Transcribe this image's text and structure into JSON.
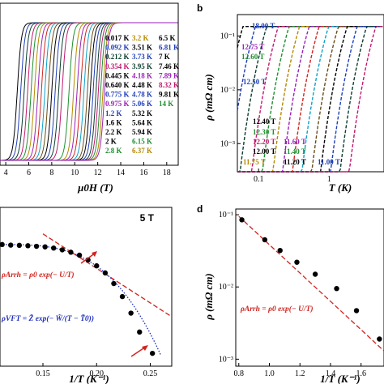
{
  "panels": {
    "a": {
      "xlabel": "μ0H (T)",
      "x_ticks": [
        "4",
        "6",
        "8",
        "10",
        "12",
        "14",
        "16",
        "18"
      ],
      "legend": [
        {
          "label": "0.017 K",
          "color": "#000000"
        },
        {
          "label": "0.092 K",
          "color": "#1f3fb8"
        },
        {
          "label": "0.212 K",
          "color": "#0b3d2e"
        },
        {
          "label": "0.354 K",
          "color": "#c0196f"
        },
        {
          "label": "0.445 K",
          "color": "#000000"
        },
        {
          "label": "0.640 K",
          "color": "#000000"
        },
        {
          "label": "0.775 K",
          "color": "#1f3fb8"
        },
        {
          "label": "0.975 K",
          "color": "#9b1fb8"
        },
        {
          "label": "1.2 K",
          "color": "#1f3fb8"
        },
        {
          "label": "1.6 K",
          "color": "#000000"
        },
        {
          "label": "2.2 K",
          "color": "#000000"
        },
        {
          "label": "2 K",
          "color": "#000000"
        },
        {
          "label": "2.8 K",
          "color": "#1f8f2f"
        },
        {
          "label": "3.2 K",
          "color": "#b58900"
        },
        {
          "label": "3.51 K",
          "color": "#000000"
        },
        {
          "label": "3.73 K",
          "color": "#1f3fb8"
        },
        {
          "label": "3.95 K",
          "color": "#0b3d2e"
        },
        {
          "label": "4.18 K",
          "color": "#9b1fb8"
        },
        {
          "label": "4.48 K",
          "color": "#000000"
        },
        {
          "label": "4.78 K",
          "color": "#1f3fb8"
        },
        {
          "label": "5.06 K",
          "color": "#1f3fb8"
        },
        {
          "label": "5.32 K",
          "color": "#000000"
        },
        {
          "label": "5.64 K",
          "color": "#000000"
        },
        {
          "label": "5.94 K",
          "color": "#000000"
        },
        {
          "label": "6.15 K",
          "color": "#1f8f2f"
        },
        {
          "label": "6.37 K",
          "color": "#b58900"
        },
        {
          "label": "6.5 K",
          "color": "#000000"
        },
        {
          "label": "6.81 K",
          "color": "#1f3fb8"
        },
        {
          "label": "7 K",
          "color": "#000000"
        },
        {
          "label": "7.46 K",
          "color": "#000000"
        },
        {
          "label": "7.89 K",
          "color": "#9b1fb8"
        },
        {
          "label": "8.32 K",
          "color": "#c0196f"
        },
        {
          "label": "9.81 K",
          "color": "#000000"
        },
        {
          "label": "14 K",
          "color": "#1f8f2f"
        }
      ]
    },
    "b": {
      "letter": "b",
      "xlabel": "T (K)",
      "ylabel": "ρ (mΩ cm)",
      "x_ticks": [
        "0.1",
        "1"
      ],
      "y_ticks": [
        "10⁻¹",
        "10⁻²",
        "10⁻³"
      ],
      "field_labels": [
        {
          "label": "18.00 T",
          "color": "#1f3fb8"
        },
        {
          "label": "12.75 T",
          "color": "#9b1fb8"
        },
        {
          "label": "12.60 T",
          "color": "#1f8f2f"
        },
        {
          "label": "12.50 T",
          "color": "#1f3fb8"
        },
        {
          "label": "12.40 T",
          "color": "#000000"
        },
        {
          "label": "12.30 T",
          "color": "#1f8f2f"
        },
        {
          "label": "12.20 T",
          "color": "#c0196f"
        },
        {
          "label": "12.00 T",
          "color": "#000000"
        },
        {
          "label": "11.75 T",
          "color": "#b58900"
        },
        {
          "label": "11.60 T",
          "color": "#9b1fb8"
        },
        {
          "label": "11.40 T",
          "color": "#1f8f2f"
        },
        {
          "label": "11.20 T",
          "color": "#000000"
        },
        {
          "label": "11.00 T",
          "color": "#1f3fb8"
        }
      ]
    },
    "c": {
      "field": "5 T",
      "xlabel": "1/T (K⁻¹)",
      "x_ticks": [
        "0.15",
        "0.20",
        "0.25"
      ],
      "eq_arrh": "ρArrh = ρ0 exp(− U/T)",
      "eq_vft": "ρVFT = Z̃ exp(− W̃/(T − T̃0))"
    },
    "d": {
      "letter": "d",
      "xlabel": "1/T (K⁻¹)",
      "ylabel": "ρ (mΩ cm)",
      "x_ticks": [
        "0.8",
        "1.0",
        "1.2",
        "1.4",
        "1.6"
      ],
      "y_ticks": [
        "10⁻¹",
        "10⁻²",
        "10⁻³"
      ],
      "eq_arrh": "ρArrh = ρ0 exp(− U/T)"
    }
  },
  "chart_data": [
    {
      "type": "line",
      "panel": "a",
      "xlabel": "μ0H (T)",
      "xlim": [
        3.5,
        19
      ],
      "series_note_values": {
        "transition_fields_T": [
          5.0,
          5.3,
          5.6,
          5.9,
          6.2,
          6.5,
          6.8,
          7.1,
          7.4,
          7.7,
          8.0,
          8.3,
          8.6,
          8.9,
          9.5,
          9.9,
          10.2,
          10.5,
          10.8,
          11.1,
          11.35,
          11.6,
          11.85,
          12.05,
          12.25,
          12.45,
          12.6
        ]
      }
    },
    {
      "type": "line",
      "panel": "b",
      "xlabel": "T (K)",
      "ylabel": "ρ (mΩ cm)",
      "xscale": "log",
      "yscale": "log",
      "xlim": [
        0.05,
        6
      ],
      "ylim": [
        0.0003,
        0.25
      ],
      "saturation_value": 0.15
    },
    {
      "type": "scatter",
      "panel": "c",
      "xlabel": "1/T (K⁻¹)",
      "xlim": [
        0.11,
        0.27
      ],
      "x": [
        0.112,
        0.12,
        0.128,
        0.136,
        0.144,
        0.152,
        0.16,
        0.168,
        0.176,
        0.184,
        0.192,
        0.2,
        0.208,
        0.216,
        0.224,
        0.232,
        0.24,
        0.252
      ],
      "y_rel": [
        0.96,
        0.955,
        0.953,
        0.95,
        0.945,
        0.94,
        0.93,
        0.915,
        0.895,
        0.87,
        0.83,
        0.78,
        0.72,
        0.63,
        0.52,
        0.38,
        0.22,
        0.04
      ]
    },
    {
      "type": "scatter",
      "panel": "d",
      "xlabel": "1/T (K⁻¹)",
      "ylabel": "ρ (mΩ cm)",
      "yscale": "log",
      "xlim": [
        0.78,
        1.75
      ],
      "ylim": [
        0.0008,
        0.12
      ],
      "x": [
        0.82,
        0.97,
        1.07,
        1.18,
        1.3,
        1.44,
        1.57,
        1.72
      ],
      "y": [
        0.085,
        0.045,
        0.032,
        0.022,
        0.015,
        0.0095,
        0.0047,
        0.0019
      ]
    }
  ]
}
